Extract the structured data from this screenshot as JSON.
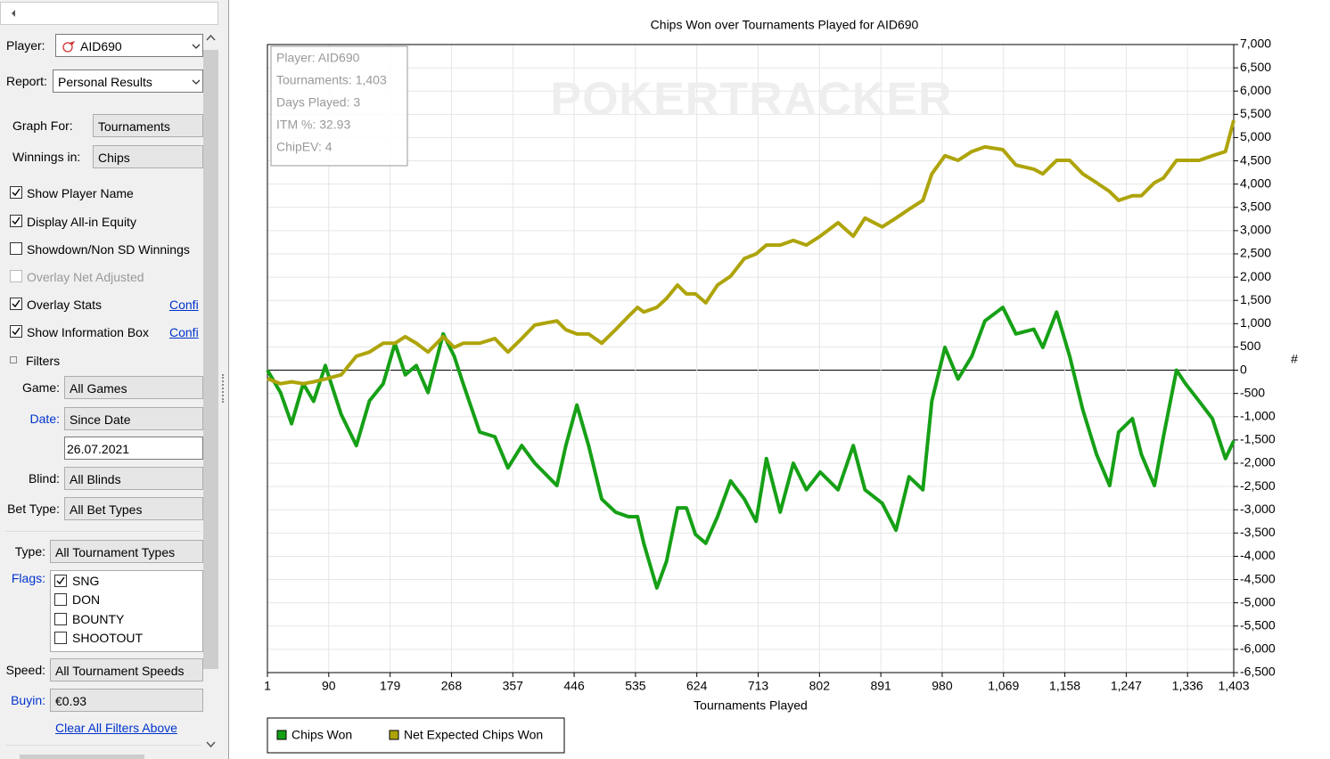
{
  "sidebar": {
    "fields": [
      {
        "label": "Player:",
        "value": "AID690"
      },
      {
        "label": "Report:",
        "value": "Personal Results"
      },
      {
        "label": "Graph For:",
        "value": "Tournaments"
      },
      {
        "label": "Winnings in:",
        "value": "Chips"
      }
    ],
    "options": [
      {
        "label": "Show Player Name",
        "checked": true
      },
      {
        "label": "Display All-in Equity",
        "checked": true
      },
      {
        "label": "Showdown/Non SD Winnings",
        "checked": false
      },
      {
        "label": "Overlay Net Adjusted",
        "checked": false,
        "disabled": true
      },
      {
        "label": "Overlay Stats",
        "checked": true,
        "link": "Confi"
      },
      {
        "label": "Show Information Box",
        "checked": true,
        "link": "Confi"
      }
    ],
    "filters_title": "Filters",
    "filters": [
      {
        "label": "Game:",
        "value": "All Games"
      },
      {
        "label": "Date:",
        "value": "Since Date",
        "date": "26.07.2021",
        "highlight": true
      },
      {
        "label": "Blind:",
        "value": "All Blinds"
      },
      {
        "label": "Bet Type:",
        "value": "All Bet Types"
      },
      {
        "label": "Type:",
        "value": "All Tournament Types"
      },
      {
        "label": "Speed:",
        "value": "All Tournament Speeds"
      },
      {
        "label": "Buyin:",
        "value": "€0.93",
        "highlight": true
      }
    ],
    "flags": {
      "label": "Flags:",
      "highlight": true,
      "items": [
        {
          "label": "SNG",
          "checked": true
        },
        {
          "label": "DON",
          "checked": false
        },
        {
          "label": "BOUNTY",
          "checked": false
        },
        {
          "label": "SHOOTOUT",
          "checked": false
        }
      ]
    },
    "clear_link": "Clear All Filters Above"
  },
  "chart_data": {
    "type": "line",
    "title": "Chips Won over Tournaments Played for AID690",
    "xlabel": "Tournaments Played",
    "ylabel": "#",
    "watermark": "POKERTRACKER",
    "info_box": [
      "Player: AID690",
      "Tournaments: 1,403",
      "Days Played: 3",
      "ITM %: 32.93",
      "ChipEV: 4"
    ],
    "x": [
      1,
      20,
      36,
      53,
      68,
      85,
      108,
      130,
      149,
      169,
      186,
      201,
      217,
      234,
      256,
      272,
      285,
      309,
      331,
      350,
      370,
      389,
      421,
      434,
      450,
      467,
      486,
      506,
      525,
      538,
      547,
      566,
      580,
      596,
      609,
      622,
      637,
      654,
      673,
      693,
      710,
      725,
      745,
      764,
      783,
      803,
      829,
      851,
      868,
      893,
      913,
      932,
      952,
      965,
      984,
      1003,
      1023,
      1042,
      1068,
      1087,
      1113,
      1126,
      1146,
      1165,
      1184,
      1204,
      1223,
      1236,
      1256,
      1269,
      1288,
      1301,
      1320,
      1333,
      1353,
      1372,
      1391,
      1403
    ],
    "series": [
      {
        "name": "Chips Won",
        "color": "#16a016",
        "values": [
          0,
          -480,
          -1150,
          -290,
          -670,
          100,
          -950,
          -1620,
          -660,
          -290,
          575,
          -100,
          100,
          -480,
          780,
          300,
          -290,
          -1330,
          -1430,
          -2100,
          -1620,
          -2000,
          -2480,
          -1620,
          -750,
          -1620,
          -2770,
          -3050,
          -3150,
          -3150,
          -3720,
          -4680,
          -4110,
          -2960,
          -2960,
          -3530,
          -3720,
          -3150,
          -2380,
          -2770,
          -3250,
          -1900,
          -3050,
          -2000,
          -2570,
          -2190,
          -2570,
          -1620,
          -2570,
          -2860,
          -3440,
          -2290,
          -2570,
          -660,
          490,
          -190,
          300,
          1060,
          1350,
          780,
          880,
          490,
          1250,
          300,
          -850,
          -1810,
          -2480,
          -1330,
          -1040,
          -1810,
          -2480,
          -1430,
          0,
          -290,
          -670,
          -1040,
          -1900,
          -1520
        ]
      },
      {
        "name": "Net Expected Chips Won",
        "color": "#aea40a",
        "values": [
          -180,
          -290,
          -250,
          -290,
          -250,
          -190,
          -100,
          300,
          390,
          580,
          580,
          720,
          580,
          390,
          720,
          490,
          580,
          580,
          680,
          390,
          680,
          970,
          1060,
          870,
          780,
          780,
          580,
          870,
          1160,
          1350,
          1250,
          1350,
          1540,
          1830,
          1640,
          1640,
          1450,
          1830,
          2020,
          2400,
          2500,
          2690,
          2690,
          2790,
          2690,
          2880,
          3170,
          2880,
          3270,
          3080,
          3270,
          3460,
          3650,
          4220,
          4610,
          4510,
          4700,
          4800,
          4740,
          4410,
          4320,
          4220,
          4510,
          4510,
          4220,
          4030,
          3840,
          3650,
          3750,
          3750,
          4030,
          4130,
          4510,
          4510,
          4510,
          4610,
          4700,
          5370
        ]
      }
    ],
    "xlim": [
      1,
      1403
    ],
    "xticks": [
      1,
      90,
      179,
      268,
      357,
      446,
      535,
      624,
      713,
      802,
      891,
      980,
      {
        "value": 1069,
        "label": "1,069"
      },
      {
        "value": 1158,
        "label": "1,158"
      },
      {
        "value": 1247,
        "label": "1,247"
      },
      {
        "value": 1336,
        "label": "1,336"
      },
      {
        "value": 1403,
        "label": "1,403"
      }
    ],
    "ylim": [
      -6500,
      7000
    ],
    "yticks": [
      {
        "value": -6500,
        "label": "-6,500"
      },
      {
        "value": -6000,
        "label": "-6,000"
      },
      {
        "value": -5500,
        "label": "-5,500"
      },
      {
        "value": -5000,
        "label": "-5,000"
      },
      {
        "value": -4500,
        "label": "-4,500"
      },
      {
        "value": -4000,
        "label": "-4,000"
      },
      {
        "value": -3500,
        "label": "-3,500"
      },
      {
        "value": -3000,
        "label": "-3,000"
      },
      {
        "value": -2500,
        "label": "-2,500"
      },
      {
        "value": -2000,
        "label": "-2,000"
      },
      {
        "value": -1500,
        "label": "-1,500"
      },
      {
        "value": -1000,
        "label": "-1,000"
      },
      -500,
      0,
      500,
      {
        "value": 1000,
        "label": "1,000"
      },
      {
        "value": 1500,
        "label": "1,500"
      },
      {
        "value": 2000,
        "label": "2,000"
      },
      {
        "value": 2500,
        "label": "2,500"
      },
      {
        "value": 3000,
        "label": "3,000"
      },
      {
        "value": 3500,
        "label": "3,500"
      },
      {
        "value": 4000,
        "label": "4,000"
      },
      {
        "value": 4500,
        "label": "4,500"
      },
      {
        "value": 5000,
        "label": "5,000"
      },
      {
        "value": 5500,
        "label": "5,500"
      },
      {
        "value": 6000,
        "label": "6,000"
      },
      {
        "value": 6500,
        "label": "6,500"
      },
      {
        "value": 7000,
        "label": "7,000"
      }
    ],
    "grid": true,
    "legend": "bottom-left"
  }
}
